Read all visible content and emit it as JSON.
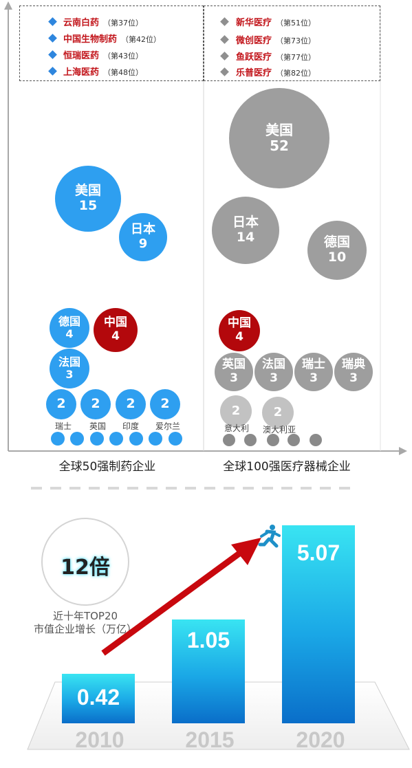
{
  "legend_left": [
    {
      "name": "云南白药",
      "rank": "（第37位）"
    },
    {
      "name": "中国生物制药",
      "rank": "（第42位）"
    },
    {
      "name": "恒瑞医药",
      "rank": "（第43位）"
    },
    {
      "name": "上海医药",
      "rank": "（第48位）"
    }
  ],
  "legend_right": [
    {
      "name": "新华医疗",
      "rank": "（第51位）"
    },
    {
      "name": "微创医疗",
      "rank": "（第73位）"
    },
    {
      "name": "鱼跃医疗",
      "rank": "（第77位）"
    },
    {
      "name": "乐普医疗",
      "rank": "（第82位）"
    }
  ],
  "axis": {
    "left_category": "全球50强制药企业",
    "right_category": "全球100强医疗器械企业"
  },
  "colors": {
    "pharma": "#2e9ff0",
    "china": "#b3080c",
    "device": "#9e9e9e",
    "bar_top": "#39e4f2",
    "bar_bottom": "#0a6ec9",
    "arrow": "#c8080e"
  },
  "growth_badge": {
    "value": "12倍",
    "caption_line1": "近十年TOP20",
    "caption_line2": "市值企业增长（万亿）"
  },
  "chart_data": [
    {
      "type": "scatter",
      "title": "",
      "xlabel": "全球50强制药企业",
      "series": [
        {
          "country": "美国",
          "count": 15
        },
        {
          "country": "日本",
          "count": 9
        },
        {
          "country": "德国",
          "count": 4
        },
        {
          "country": "中国",
          "count": 4
        },
        {
          "country": "法国",
          "count": 3
        },
        {
          "country": "瑞士",
          "count": 2
        },
        {
          "country": "英国",
          "count": 2
        },
        {
          "country": "印度",
          "count": 2
        },
        {
          "country": "爱尔兰",
          "count": 2
        }
      ]
    },
    {
      "type": "scatter",
      "title": "",
      "xlabel": "全球100强医疗器械企业",
      "series": [
        {
          "country": "美国",
          "count": 52
        },
        {
          "country": "日本",
          "count": 14
        },
        {
          "country": "德国",
          "count": 10
        },
        {
          "country": "中国",
          "count": 4
        },
        {
          "country": "英国",
          "count": 3
        },
        {
          "country": "法国",
          "count": 3
        },
        {
          "country": "瑞士",
          "count": 3
        },
        {
          "country": "瑞典",
          "count": 3
        },
        {
          "country": "意大利",
          "count": 2
        },
        {
          "country": "澳大利亚",
          "count": 2
        }
      ]
    },
    {
      "type": "bar",
      "title": "",
      "categories": [
        "2010",
        "2015",
        "2020"
      ],
      "values": [
        0.42,
        1.05,
        5.07
      ],
      "value_labels": [
        "0.42",
        "1.05",
        "5.07"
      ]
    }
  ]
}
